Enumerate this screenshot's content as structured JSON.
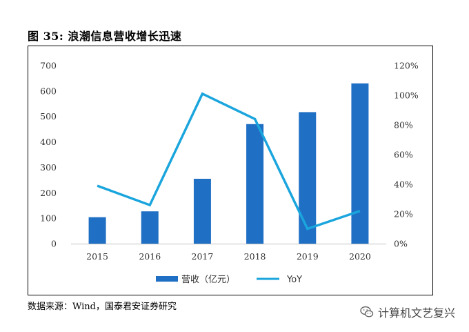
{
  "figure": {
    "title": "图 35:  浪潮信息营收增长迅速",
    "source": "数据来源：Wind，国泰君安证券研究",
    "watermark": "计算机文艺复兴"
  },
  "colors": {
    "bar": "#1f6fc4",
    "line": "#1aa5dd"
  },
  "chart_data": {
    "type": "bar+line",
    "title": "浪潮信息营收增长迅速",
    "categories": [
      "2015",
      "2016",
      "2017",
      "2018",
      "2019",
      "2020"
    ],
    "series": [
      {
        "name": "营收（亿元）",
        "type": "bar",
        "axis": "left",
        "values": [
          104,
          127,
          255,
          470,
          517,
          630
        ]
      },
      {
        "name": "YoY",
        "type": "line",
        "axis": "right",
        "values": [
          39,
          26,
          101,
          84,
          10,
          22
        ]
      }
    ],
    "left_axis": {
      "min": 0,
      "max": 700,
      "ticks": [
        0,
        100,
        200,
        300,
        400,
        500,
        600,
        700
      ],
      "tick_labels": [
        "0",
        "100",
        "200",
        "300",
        "400",
        "500",
        "600",
        "700"
      ]
    },
    "right_axis": {
      "min": 0,
      "max": 120,
      "ticks": [
        0,
        20,
        40,
        60,
        80,
        100,
        120
      ],
      "tick_labels": [
        "0%",
        "20%",
        "40%",
        "60%",
        "80%",
        "100%",
        "120%"
      ]
    },
    "legend": {
      "position": "bottom",
      "items": [
        "营收（亿元）",
        "YoY"
      ]
    },
    "grid": false
  }
}
